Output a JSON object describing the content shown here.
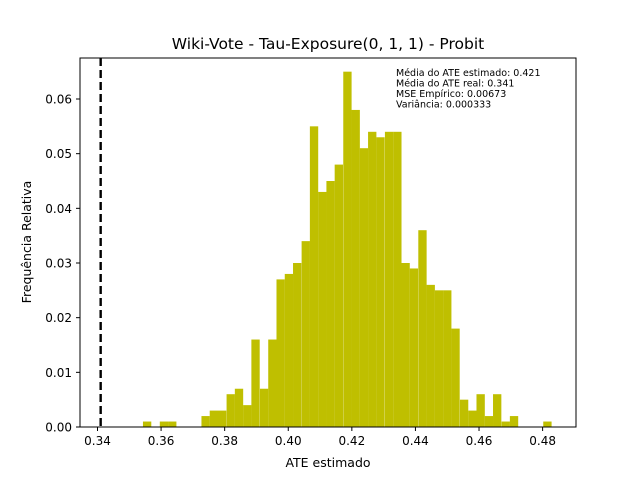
{
  "chart_data": {
    "type": "bar",
    "title": "Wiki-Vote - Tau-Exposure(0, 1, 1) - Probit",
    "xlabel": "ATE estimado",
    "ylabel": "Frequência Relativa",
    "xlim": [
      0.3345,
      0.4905
    ],
    "ylim": [
      0.0,
      0.0675
    ],
    "bin_width": 0.00262,
    "xticks": [
      "0.34",
      "0.36",
      "0.38",
      "0.40",
      "0.42",
      "0.44",
      "0.46",
      "0.48"
    ],
    "yticks": [
      "0.00",
      "0.01",
      "0.02",
      "0.03",
      "0.04",
      "0.05",
      "0.06"
    ],
    "reference_line": {
      "x": 0.341,
      "style": "dashed",
      "color": "#000000"
    },
    "bar_color": "#bfbf00",
    "annotations": [
      "Média do ATE estimado: 0.421",
      "Média do ATE real: 0.341",
      "MSE Empírico: 0.00673",
      "Variância: 0.000333"
    ],
    "bins_left": [
      0.3543,
      0.3596,
      0.3622,
      0.3727,
      0.3753,
      0.3779,
      0.3806,
      0.3832,
      0.3858,
      0.3884,
      0.3911,
      0.3937,
      0.3963,
      0.3989,
      0.4015,
      0.4042,
      0.4068,
      0.4094,
      0.412,
      0.4146,
      0.4173,
      0.4199,
      0.4225,
      0.4251,
      0.4277,
      0.4304,
      0.433,
      0.4356,
      0.4382,
      0.4409,
      0.4435,
      0.4461,
      0.4487,
      0.4513,
      0.454,
      0.4566,
      0.4592,
      0.4618,
      0.4644,
      0.4671,
      0.4697,
      0.4802
    ],
    "values": [
      0.001,
      0.001,
      0.001,
      0.002,
      0.003,
      0.003,
      0.006,
      0.007,
      0.004,
      0.016,
      0.007,
      0.016,
      0.027,
      0.028,
      0.03,
      0.034,
      0.055,
      0.043,
      0.045,
      0.048,
      0.065,
      0.058,
      0.051,
      0.054,
      0.053,
      0.054,
      0.054,
      0.03,
      0.029,
      0.036,
      0.026,
      0.025,
      0.025,
      0.018,
      0.005,
      0.003,
      0.006,
      0.002,
      0.006,
      0.001,
      0.002,
      0.001
    ]
  }
}
